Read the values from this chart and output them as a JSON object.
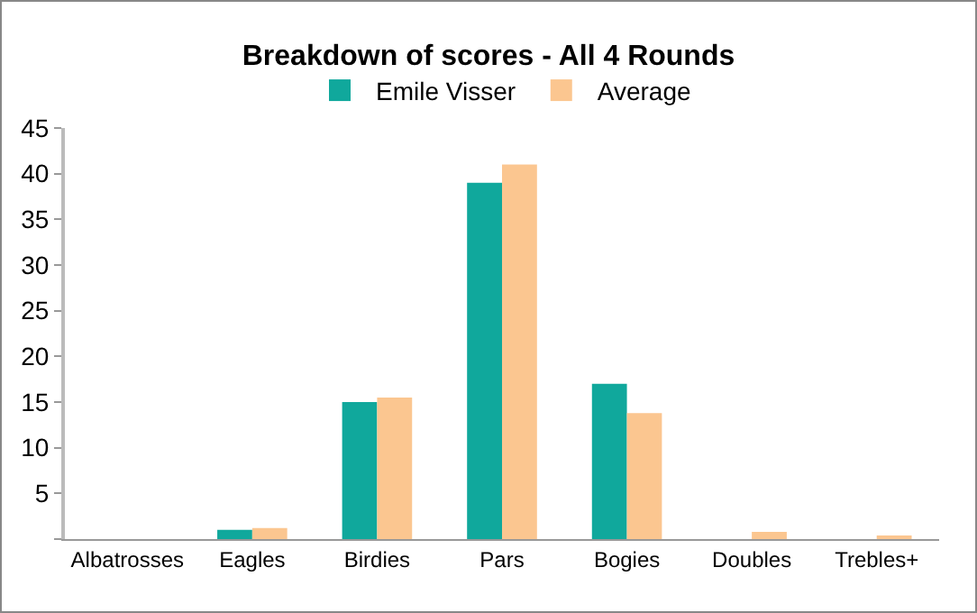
{
  "chart_data": {
    "type": "bar",
    "title": "Breakdown of scores - All 4 Rounds",
    "categories": [
      "Albatrosses",
      "Eagles",
      "Birdies",
      "Pars",
      "Bogies",
      "Doubles",
      "Trebles+"
    ],
    "series": [
      {
        "name": "Emile Visser",
        "color": "#10a89c",
        "values": [
          0,
          1,
          15,
          39,
          17,
          0,
          0
        ]
      },
      {
        "name": "Average",
        "color": "#fbc690",
        "values": [
          0,
          1.2,
          15.5,
          41,
          13.8,
          0.8,
          0.2
        ]
      }
    ],
    "ylim": [
      0,
      45
    ],
    "yticks": [
      {
        "value": 0,
        "label": null
      },
      5,
      10,
      15,
      20,
      25,
      30,
      35,
      40,
      45
    ],
    "grid": false,
    "legend": "top"
  }
}
